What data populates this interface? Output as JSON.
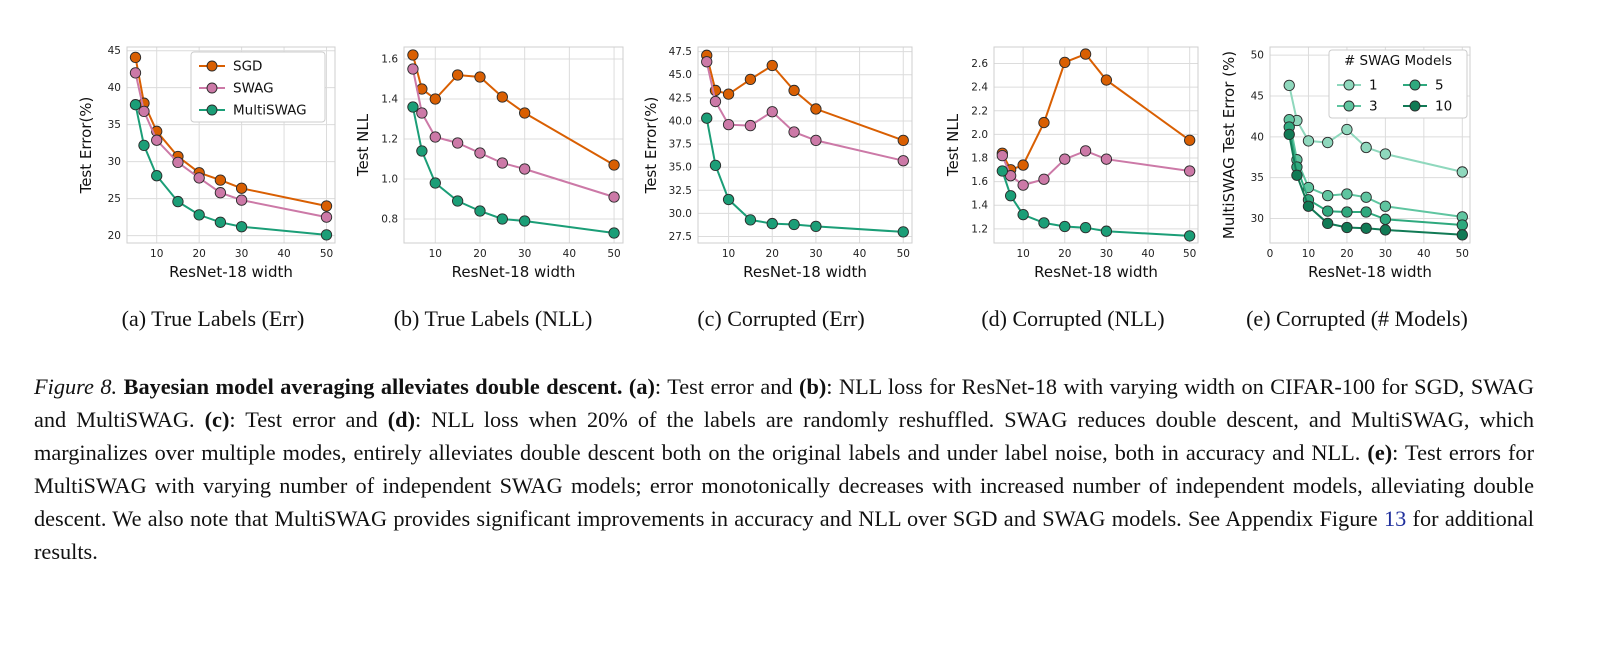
{
  "colors": {
    "SGD": "#d95f02",
    "SWAG": "#cc79a7",
    "MultiSWAG": "#1b9e77",
    "models_1": "#8fd8bd",
    "models_3": "#5fc5a0",
    "models_5": "#2fa97e",
    "models_10": "#117a55"
  },
  "chart_data": [
    {
      "type": "line",
      "subcaption": "(a)  True Labels (Err)",
      "xlabel": "ResNet-18 width",
      "ylabel": "Test Error(%)",
      "xlim": [
        3,
        52
      ],
      "ylim": [
        19,
        45.5
      ],
      "xticks": [
        10,
        20,
        30,
        40,
        50
      ],
      "yticks": [
        20,
        25,
        30,
        35,
        40,
        45
      ],
      "x": [
        5,
        7,
        10,
        15,
        20,
        25,
        30,
        50
      ],
      "grid": true,
      "legend": {
        "position": "upper-right",
        "title": ""
      },
      "series": [
        {
          "name": "SGD",
          "color_key": "SGD",
          "values": [
            44.1,
            37.9,
            34.1,
            30.7,
            28.5,
            27.5,
            26.4,
            24.0
          ]
        },
        {
          "name": "SWAG",
          "color_key": "SWAG",
          "values": [
            42.0,
            36.8,
            32.9,
            29.9,
            27.8,
            25.8,
            24.8,
            22.5
          ]
        },
        {
          "name": "MultiSWAG",
          "color_key": "MultiSWAG",
          "values": [
            37.7,
            32.2,
            28.1,
            24.6,
            22.8,
            21.8,
            21.2,
            20.1
          ]
        }
      ]
    },
    {
      "type": "line",
      "subcaption": "(b)  True Labels (NLL)",
      "xlabel": "ResNet-18 width",
      "ylabel": "Test NLL",
      "xlim": [
        3,
        52
      ],
      "ylim": [
        0.68,
        1.66
      ],
      "xticks": [
        10,
        20,
        30,
        40,
        50
      ],
      "yticks": [
        0.8,
        1.0,
        1.2,
        1.4,
        1.6
      ],
      "x": [
        5,
        7,
        10,
        15,
        20,
        25,
        30,
        50
      ],
      "grid": true,
      "series": [
        {
          "name": "SGD",
          "color_key": "SGD",
          "values": [
            1.62,
            1.45,
            1.4,
            1.52,
            1.51,
            1.41,
            1.33,
            1.07
          ]
        },
        {
          "name": "SWAG",
          "color_key": "SWAG",
          "values": [
            1.55,
            1.33,
            1.21,
            1.18,
            1.13,
            1.08,
            1.05,
            0.91
          ]
        },
        {
          "name": "MultiSWAG",
          "color_key": "MultiSWAG",
          "values": [
            1.36,
            1.14,
            0.98,
            0.89,
            0.84,
            0.8,
            0.79,
            0.73
          ]
        }
      ]
    },
    {
      "type": "line",
      "subcaption": "(c)  Corrupted (Err)",
      "xlabel": "ResNet-18 width",
      "ylabel": "Test Error(%)",
      "xlim": [
        3,
        52
      ],
      "ylim": [
        26.8,
        48.0
      ],
      "xticks": [
        10,
        20,
        30,
        40,
        50
      ],
      "yticks": [
        27.5,
        30.0,
        32.5,
        35.0,
        37.5,
        40.0,
        42.5,
        45.0,
        47.5
      ],
      "x": [
        5,
        7,
        10,
        15,
        20,
        25,
        30,
        50
      ],
      "grid": true,
      "series": [
        {
          "name": "SGD",
          "color_key": "SGD",
          "values": [
            47.1,
            43.3,
            42.9,
            44.5,
            46.0,
            43.3,
            41.3,
            37.9
          ]
        },
        {
          "name": "SWAG",
          "color_key": "SWAG",
          "values": [
            46.4,
            42.1,
            39.6,
            39.5,
            41.0,
            38.8,
            37.9,
            35.7
          ]
        },
        {
          "name": "MultiSWAG",
          "color_key": "MultiSWAG",
          "values": [
            40.3,
            35.2,
            31.5,
            29.3,
            28.9,
            28.8,
            28.6,
            28.0
          ]
        }
      ]
    },
    {
      "type": "line",
      "subcaption": "(d)  Corrupted (NLL)",
      "xlabel": "ResNet-18 width",
      "ylabel": "Test NLL",
      "xlim": [
        3,
        52
      ],
      "ylim": [
        1.08,
        2.74
      ],
      "xticks": [
        10,
        20,
        30,
        40,
        50
      ],
      "yticks": [
        1.2,
        1.4,
        1.6,
        1.8,
        2.0,
        2.2,
        2.4,
        2.6
      ],
      "x": [
        5,
        7,
        10,
        15,
        20,
        25,
        30,
        50
      ],
      "grid": true,
      "series": [
        {
          "name": "SGD",
          "color_key": "SGD",
          "values": [
            1.84,
            1.7,
            1.74,
            2.1,
            2.61,
            2.68,
            2.46,
            1.95
          ]
        },
        {
          "name": "SWAG",
          "color_key": "SWAG",
          "values": [
            1.82,
            1.65,
            1.57,
            1.62,
            1.79,
            1.86,
            1.79,
            1.69
          ]
        },
        {
          "name": "MultiSWAG",
          "color_key": "MultiSWAG",
          "values": [
            1.69,
            1.48,
            1.32,
            1.25,
            1.22,
            1.21,
            1.18,
            1.14
          ]
        }
      ]
    },
    {
      "type": "line",
      "subcaption": "(e)  Corrupted (# Models)",
      "xlabel": "ResNet-18 width",
      "ylabel": "MultiSWAG Test Error (%)",
      "xlim": [
        0,
        52
      ],
      "ylim": [
        27.0,
        51.0
      ],
      "xticks": [
        0,
        10,
        20,
        30,
        40,
        50
      ],
      "yticks": [
        30,
        35,
        40,
        45,
        50
      ],
      "x": [
        5,
        7,
        10,
        15,
        20,
        25,
        30,
        50
      ],
      "grid": true,
      "legend": {
        "position": "upper-right",
        "title": "# SWAG Models"
      },
      "series": [
        {
          "name": "1",
          "color_key": "models_1",
          "values": [
            46.3,
            42.0,
            39.5,
            39.3,
            40.9,
            38.7,
            37.9,
            35.7
          ]
        },
        {
          "name": "3",
          "color_key": "models_3",
          "values": [
            42.1,
            37.2,
            33.8,
            32.8,
            33.0,
            32.6,
            31.5,
            30.2
          ]
        },
        {
          "name": "5",
          "color_key": "models_5",
          "values": [
            41.2,
            36.3,
            32.3,
            30.9,
            30.8,
            30.8,
            29.9,
            29.2
          ]
        },
        {
          "name": "10",
          "color_key": "models_10",
          "values": [
            40.3,
            35.3,
            31.5,
            29.4,
            28.9,
            28.8,
            28.6,
            28.0
          ]
        }
      ]
    }
  ],
  "caption": {
    "figure_label": "Figure 8.",
    "title": "Bayesian model averaging alleviates double descent.",
    "segments": [
      {
        "t": " ",
        "s": ""
      },
      {
        "t": "(a)",
        "s": "b"
      },
      {
        "t": ": Test error and ",
        "s": ""
      },
      {
        "t": "(b)",
        "s": "b"
      },
      {
        "t": ": NLL loss for ResNet-18 with varying width on CIFAR-100 for SGD, SWAG and MultiSWAG. ",
        "s": ""
      },
      {
        "t": "(c)",
        "s": "b"
      },
      {
        "t": ": Test error and ",
        "s": ""
      },
      {
        "t": "(d)",
        "s": "b"
      },
      {
        "t": ": NLL loss when 20% of the labels are randomly reshuffled. SWAG reduces double descent, and MultiSWAG, which marginalizes over multiple modes, entirely alleviates double descent both on the original labels and under label noise, both in accuracy and NLL. ",
        "s": ""
      },
      {
        "t": "(e)",
        "s": "b"
      },
      {
        "t": ": Test errors for MultiSWAG with varying number of independent SWAG models; error monotonically decreases with increased number of independent models, alleviating double descent. We also note that MultiSWAG provides significant improvements in accuracy and NLL over SGD and SWAG models. See Appendix Figure ",
        "s": ""
      },
      {
        "t": "13",
        "s": "ref"
      },
      {
        "t": " for additional results.",
        "s": ""
      }
    ]
  }
}
